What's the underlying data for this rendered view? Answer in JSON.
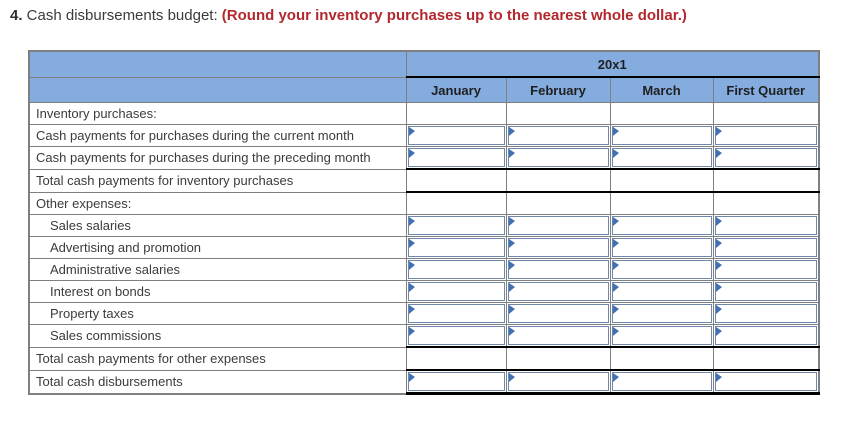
{
  "title": {
    "number": "4.",
    "text": " Cash disbursements budget: ",
    "note": "(Round your inventory purchases up to the nearest whole dollar.)"
  },
  "table": {
    "year_header": "20x1",
    "columns": [
      "January",
      "February",
      "March",
      "First Quarter"
    ],
    "rows": [
      {
        "label": "Inventory purchases:",
        "type": "section"
      },
      {
        "label": "Cash payments for purchases during the current month",
        "type": "input",
        "values": [
          "",
          "",
          "",
          ""
        ]
      },
      {
        "label": "Cash payments for purchases during the preceding month",
        "type": "input",
        "values": [
          "",
          "",
          "",
          ""
        ]
      },
      {
        "label": "Total cash payments for inventory purchases",
        "type": "total"
      },
      {
        "label": "Other expenses:",
        "type": "section"
      },
      {
        "label": "Sales salaries",
        "type": "input",
        "indent": true,
        "values": [
          "",
          "",
          "",
          ""
        ]
      },
      {
        "label": "Advertising and promotion",
        "type": "input",
        "indent": true,
        "values": [
          "",
          "",
          "",
          ""
        ]
      },
      {
        "label": "Administrative salaries",
        "type": "input",
        "indent": true,
        "values": [
          "",
          "",
          "",
          ""
        ]
      },
      {
        "label": "Interest on bonds",
        "type": "input",
        "indent": true,
        "values": [
          "",
          "",
          "",
          ""
        ]
      },
      {
        "label": "Property taxes",
        "type": "input",
        "indent": true,
        "values": [
          "",
          "",
          "",
          ""
        ]
      },
      {
        "label": "Sales commissions",
        "type": "input",
        "indent": true,
        "values": [
          "",
          "",
          "",
          ""
        ]
      },
      {
        "label": "Total cash payments for other expenses",
        "type": "total"
      },
      {
        "label": "Total cash disbursements",
        "type": "input",
        "last": true,
        "values": [
          "",
          "",
          "",
          ""
        ]
      }
    ],
    "colors": {
      "header_bg": "#84acdf",
      "grid_border": "#7f7f7f",
      "total_border": "#000000",
      "input_border": "#7087a8",
      "answer_marker": "#4170b4",
      "note_text": "#b3282d"
    }
  }
}
